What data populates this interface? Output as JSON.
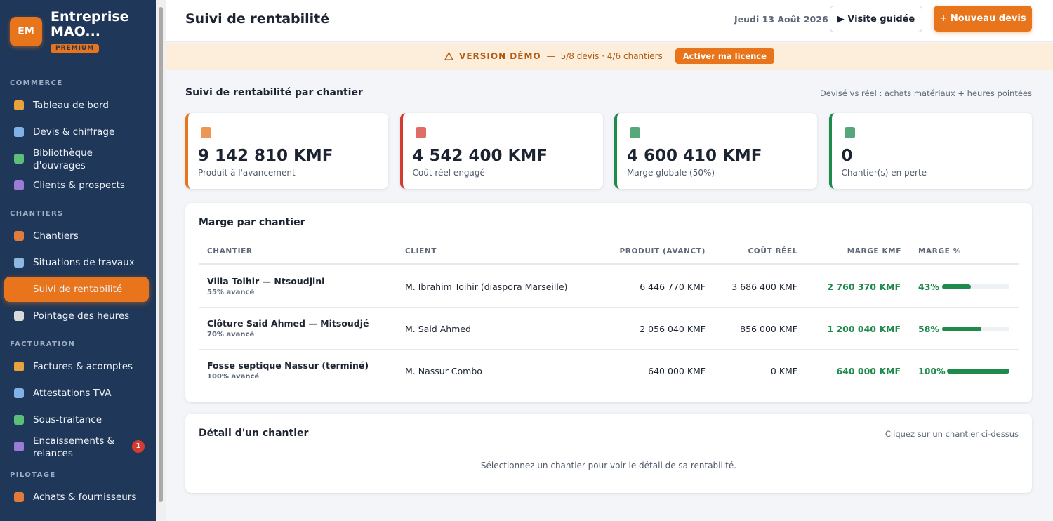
{
  "sidebar": {
    "logo": "EM",
    "company": "Entreprise MAO...",
    "badge": "PREMIUM",
    "sections": [
      {
        "title": "COMMERCE",
        "items": [
          {
            "label": "Tableau de bord"
          },
          {
            "label": "Devis & chiffrage"
          },
          {
            "label": "Bibliothèque d'ouvrages"
          },
          {
            "label": "Clients & prospects"
          }
        ]
      },
      {
        "title": "CHANTIERS",
        "items": [
          {
            "label": "Chantiers"
          },
          {
            "label": "Situations de travaux"
          },
          {
            "label": "Suivi de rentabilité",
            "active": true
          },
          {
            "label": "Pointage des heures"
          }
        ]
      },
      {
        "title": "FACTURATION",
        "items": [
          {
            "label": "Factures & acomptes"
          },
          {
            "label": "Attestations TVA"
          },
          {
            "label": "Sous-traitance"
          },
          {
            "label": "Encaissements & relances",
            "count": 1
          }
        ]
      },
      {
        "title": "PILOTAGE",
        "items": [
          {
            "label": "Achats & fournisseurs"
          }
        ]
      }
    ]
  },
  "header": {
    "title": "Suivi de rentabilité",
    "date": "Jeudi 13 Août 2026",
    "guide_button": "▶ Visite guidée",
    "new_button": "+ Nouveau devis"
  },
  "banner": {
    "label": "VERSION DÉMO",
    "separator": "—",
    "info": "5/8 devis · 4/6 chantiers",
    "button": "Activer ma licence"
  },
  "section": {
    "title": "Suivi de rentabilité par chantier",
    "note": "Devisé vs réel : achats matériaux + heures pointées"
  },
  "kpis": [
    {
      "value": "9 142 810 KMF",
      "label": "Produit à l'avancement",
      "color": "#e8741c"
    },
    {
      "value": "4 542 400 KMF",
      "label": "Coût réel engagé",
      "color": "#d63b30"
    },
    {
      "value": "4 600 410 KMF",
      "label": "Marge globale (50%)",
      "color": "#1e8a4c"
    },
    {
      "value": "0",
      "label": "Chantier(s) en perte",
      "color": "#1e8a4c"
    }
  ],
  "table": {
    "title": "Marge par chantier",
    "headers": [
      "CHANTIER",
      "CLIENT",
      "PRODUIT (AVANCT)",
      "COÛT RÉEL",
      "MARGE KMF",
      "MARGE %"
    ],
    "rows": [
      {
        "name": "Villa Toihir — Ntsoudjini",
        "progress": "55% avancé",
        "client": "M. Ibrahim Toihir (diaspora Marseille)",
        "produit": "6 446 770 KMF",
        "cout": "3 686 400 KMF",
        "marge": "2 760 370 KMF",
        "margin_pct": {
          "value": 43,
          "label": "43%"
        }
      },
      {
        "name": "Clôture Said Ahmed — Mitsoudjé",
        "progress": "70% avancé",
        "client": "M. Said Ahmed",
        "produit": "2 056 040 KMF",
        "cout": "856 000 KMF",
        "marge": "1 200 040 KMF",
        "margin_pct": {
          "value": 58,
          "label": "58%"
        }
      },
      {
        "name": "Fosse septique Nassur (terminé)",
        "progress": "100% avancé",
        "client": "M. Nassur Combo",
        "produit": "640 000 KMF",
        "cout": "0 KMF",
        "marge": "640 000 KMF",
        "margin_pct": {
          "value": 100,
          "label": "100%"
        }
      }
    ]
  },
  "detail": {
    "title": "Détail d'un chantier",
    "hint": "Cliquez sur un chantier ci-dessus",
    "empty": "Sélectionnez un chantier pour voir le détail de sa rentabilité."
  }
}
